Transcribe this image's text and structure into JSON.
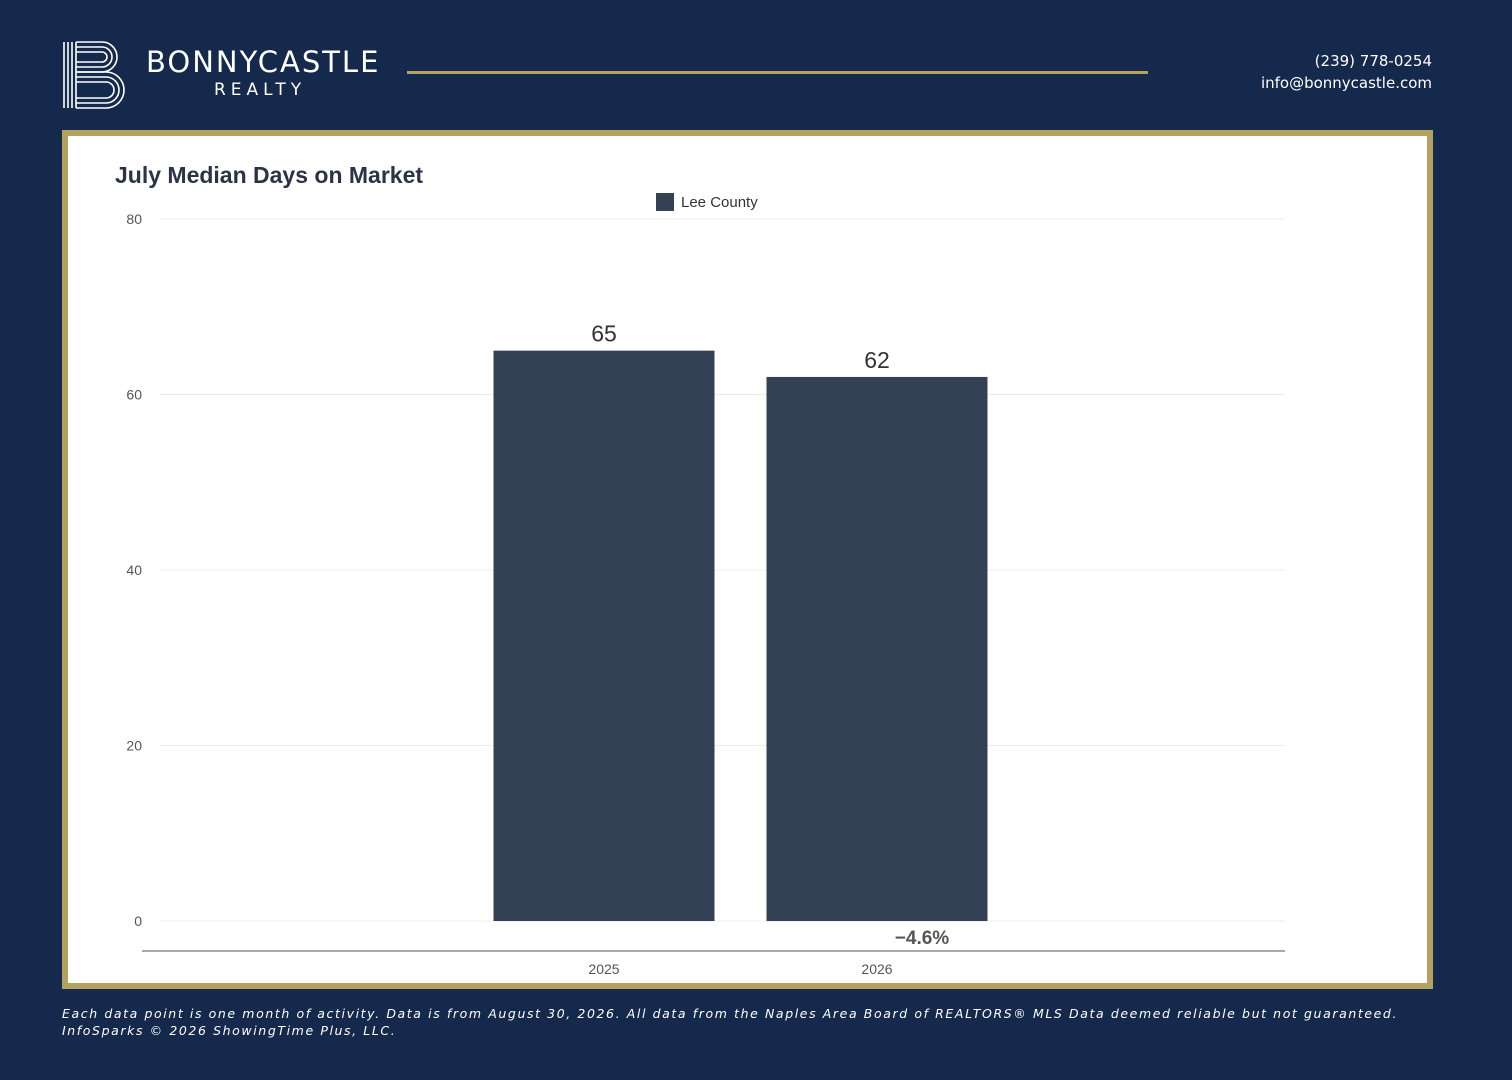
{
  "header": {
    "brand_name": "BONNYCASTLE",
    "brand_sub": "REALTY",
    "phone": "(239) 778-0254",
    "email": "info@bonnycastle.com"
  },
  "colors": {
    "background": "#14294b",
    "gold": "#b3a25d",
    "bar": "#344154",
    "panel": "#ffffff"
  },
  "chart_data": {
    "type": "bar",
    "title": "July Median Days on Market",
    "categories": [
      "2025",
      "2026"
    ],
    "series": [
      {
        "name": "Lee County",
        "values": [
          65,
          62
        ],
        "color": "#344154"
      }
    ],
    "data_labels": [
      "65",
      "62"
    ],
    "change_label": "−4.6%",
    "xlabel": "",
    "ylabel": "",
    "ylim": [
      0,
      80
    ],
    "yticks": [
      0,
      20,
      40,
      60,
      80
    ],
    "legend_position": "top-center",
    "grid": true
  },
  "footer": {
    "line1": "Each data point is one month of activity. Data is from August 30, 2026. All data from the Naples Area Board of REALTORS® MLS  Data deemed reliable but not guaranteed.",
    "line2": "InfoSparks © 2026 ShowingTime Plus, LLC."
  }
}
